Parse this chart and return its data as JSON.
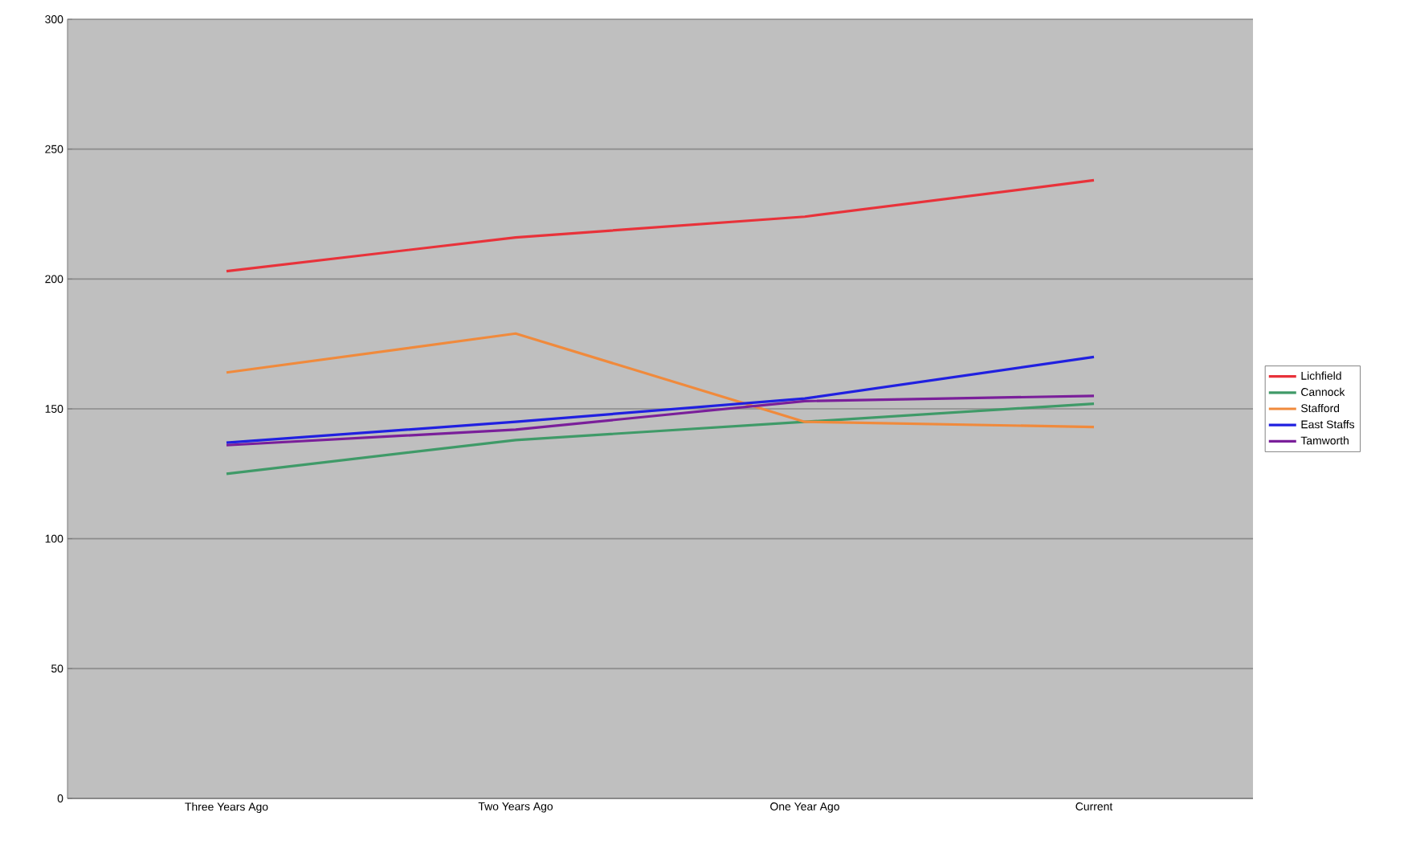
{
  "chart_data": {
    "type": "line",
    "categories": [
      "Three Years Ago",
      "Two Years Ago",
      "One Year Ago",
      "Current"
    ],
    "series": [
      {
        "name": "Lichfield",
        "color": "#e8323a",
        "values": [
          203,
          216,
          224,
          238
        ]
      },
      {
        "name": "Cannock",
        "color": "#3f9a68",
        "values": [
          125,
          138,
          145,
          152
        ]
      },
      {
        "name": "Stafford",
        "color": "#f08a3c",
        "values": [
          164,
          179,
          145,
          143
        ]
      },
      {
        "name": "East Staffs",
        "color": "#2020e0",
        "values": [
          137,
          145,
          154,
          170
        ]
      },
      {
        "name": "Tamworth",
        "color": "#7a1f9a",
        "values": [
          136,
          142,
          153,
          155
        ]
      }
    ],
    "ylim": [
      0,
      300
    ],
    "yticks": [
      0,
      50,
      100,
      150,
      200,
      250,
      300
    ],
    "grid": "y",
    "legend": "right",
    "marker": "none",
    "line_style": "solid"
  }
}
